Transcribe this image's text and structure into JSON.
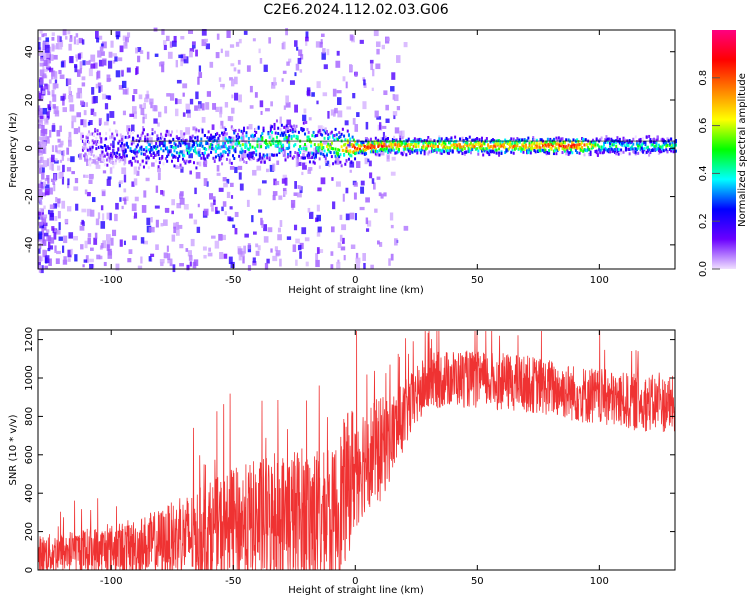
{
  "title": "C2E6.2024.112.02.03.G06",
  "chart_data": [
    {
      "type": "heatmap",
      "xlabel": "Height of straight line (km)",
      "ylabel": "Frequency (Hz)",
      "xlim": [
        -130,
        131
      ],
      "ylim": [
        -50,
        49
      ],
      "xticks": [
        -100,
        -50,
        0,
        50,
        100
      ],
      "xtick_labels": [
        "-100",
        "-50",
        "0",
        "50",
        "100"
      ],
      "yticks": [
        -40,
        -20,
        0,
        20,
        40
      ],
      "ytick_labels": [
        "-40",
        "-20",
        "0",
        "20",
        "40"
      ],
      "colorbar": {
        "label": "Normalized spectral amplitude",
        "range": [
          0,
          1
        ],
        "ticks": [
          0.0,
          0.2,
          0.4,
          0.6,
          0.8
        ],
        "tick_labels": [
          "0.0",
          "0.2",
          "0.4",
          "0.6",
          "0.8"
        ],
        "colormap": [
          "#f0e0ff",
          "#6a00ff",
          "#0000ff",
          "#00ffff",
          "#00ff00",
          "#ffff00",
          "#ff8000",
          "#ff0000",
          "#ff0080"
        ]
      },
      "ridge": {
        "x": [
          -110,
          -100,
          -90,
          -80,
          -70,
          -60,
          -50,
          -40,
          -30,
          -20,
          -10,
          0,
          10,
          20,
          30,
          40,
          50,
          60,
          70,
          80,
          90,
          100,
          110,
          120,
          131
        ],
        "frequency": [
          1,
          0,
          0,
          0,
          -1,
          1,
          1,
          2,
          3,
          2,
          1,
          0,
          1,
          1,
          1,
          1,
          1,
          1,
          1,
          1,
          1,
          1,
          1,
          1,
          1
        ],
        "amplitude": [
          0.1,
          0.2,
          0.3,
          0.35,
          0.4,
          0.4,
          0.45,
          0.55,
          0.5,
          0.55,
          0.65,
          0.85,
          0.9,
          0.7,
          0.75,
          0.75,
          0.8,
          0.8,
          0.8,
          0.9,
          0.95,
          0.5,
          0.45,
          0.45,
          0.5
        ]
      },
      "inset_line": {
        "x": [
          -92,
          131
        ],
        "frequency": [
          3,
          3
        ]
      }
    },
    {
      "type": "line",
      "xlabel": "Height of straight line (km)",
      "ylabel": "SNR (10 * v/v)",
      "xlim": [
        -130,
        131
      ],
      "ylim": [
        0,
        1250
      ],
      "xticks": [
        -100,
        -50,
        0,
        50,
        100
      ],
      "xtick_labels": [
        "-100",
        "-50",
        "0",
        "50",
        "100"
      ],
      "yticks": [
        0,
        200,
        400,
        600,
        800,
        1000,
        1200
      ],
      "ytick_labels": [
        "0",
        "200",
        "400",
        "600",
        "800",
        "1000",
        "1200"
      ],
      "color": "#ef3232",
      "series": [
        {
          "x": [
            -130,
            -120,
            -110,
            -100,
            -90,
            -80,
            -70,
            -60,
            -50,
            -40,
            -30,
            -20,
            -10,
            -5,
            0,
            5,
            10,
            15,
            20,
            25,
            30,
            40,
            50,
            60,
            70,
            80,
            90,
            100,
            110,
            120,
            131
          ],
          "mean": [
            80,
            90,
            100,
            110,
            120,
            140,
            170,
            200,
            230,
            250,
            260,
            280,
            250,
            380,
            550,
            600,
            620,
            700,
            800,
            900,
            980,
            1000,
            990,
            980,
            970,
            950,
            920,
            900,
            880,
            870,
            860
          ],
          "spread": [
            100,
            110,
            120,
            130,
            150,
            180,
            220,
            260,
            300,
            330,
            360,
            380,
            350,
            400,
            350,
            280,
            280,
            220,
            180,
            160,
            150,
            150,
            150,
            150,
            150,
            150,
            150,
            150,
            150,
            150,
            150
          ]
        }
      ]
    }
  ]
}
